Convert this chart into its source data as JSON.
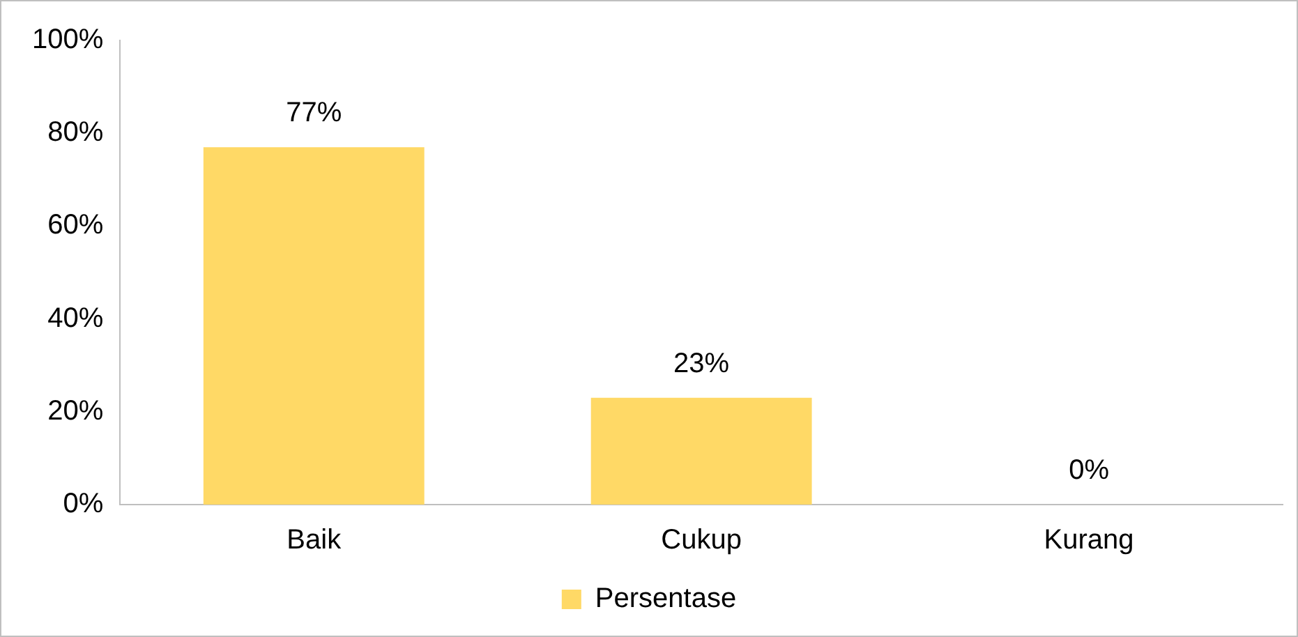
{
  "chart_data": {
    "type": "bar",
    "categories": [
      "Baik",
      "Cukup",
      "Kurang"
    ],
    "series": [
      {
        "name": "Persentase",
        "color": "#ffd966",
        "values": [
          77,
          23,
          0
        ],
        "value_labels": [
          "77%",
          "23%",
          "0%"
        ]
      }
    ],
    "ylim": [
      0,
      100
    ],
    "yticks": [
      {
        "value": 0,
        "label": "0%"
      },
      {
        "value": 20,
        "label": "20%"
      },
      {
        "value": 40,
        "label": "40%"
      },
      {
        "value": 60,
        "label": "60%"
      },
      {
        "value": 80,
        "label": "80%"
      },
      {
        "value": 100,
        "label": "100%"
      }
    ],
    "grid": false,
    "legend": "bottom"
  }
}
